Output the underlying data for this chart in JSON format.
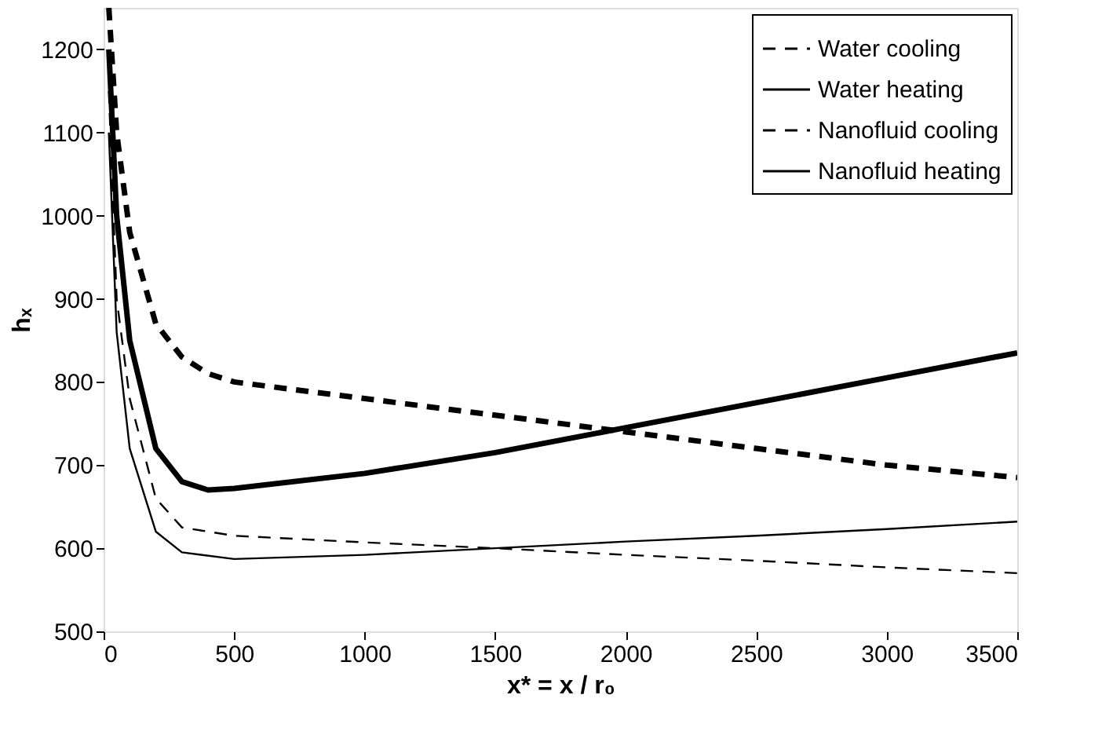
{
  "chart_data": {
    "type": "line",
    "xlabel": "x* = x / r₀",
    "ylabel": "hₓ",
    "xlim": [
      0,
      3500
    ],
    "xticks": [
      0,
      500,
      1000,
      1500,
      2000,
      2500,
      3000,
      3500
    ],
    "ylim": [
      500,
      1250
    ],
    "yticks": [
      500,
      600,
      700,
      800,
      900,
      1000,
      1100,
      1200
    ],
    "grid": false,
    "legend": "top right",
    "marker": "none",
    "series": [
      {
        "name": "Water cooling",
        "color": "#000000",
        "line_style": "dashed",
        "x": [
          20,
          50,
          100,
          200,
          300,
          500,
          1000,
          1500,
          2000,
          2500,
          3000,
          3500
        ],
        "values": [
          1150,
          900,
          780,
          660,
          625,
          615,
          607,
          600,
          592,
          585,
          577,
          570
        ]
      },
      {
        "name": "Water heating",
        "color": "#000000",
        "line_style": "solid",
        "x": [
          20,
          50,
          100,
          200,
          300,
          500,
          1000,
          1500,
          2000,
          2500,
          3000,
          3500
        ],
        "values": [
          1100,
          860,
          720,
          620,
          595,
          587,
          592,
          600,
          608,
          615,
          623,
          632
        ]
      },
      {
        "name": "Nanofluid cooling",
        "color": "#000000",
        "line_style": "dashed",
        "x": [
          20,
          50,
          100,
          200,
          300,
          400,
          500,
          1000,
          1500,
          2000,
          2500,
          3000,
          3500
        ],
        "values": [
          1250,
          1100,
          980,
          870,
          830,
          810,
          800,
          780,
          760,
          740,
          720,
          700,
          685
        ]
      },
      {
        "name": "Nanofluid heating",
        "color": "#000000",
        "line_style": "solid",
        "x": [
          20,
          50,
          100,
          200,
          300,
          400,
          500,
          1000,
          1500,
          2000,
          2500,
          3000,
          3500
        ],
        "values": [
          1200,
          1000,
          850,
          720,
          680,
          670,
          672,
          690,
          715,
          745,
          775,
          805,
          835
        ]
      }
    ]
  }
}
